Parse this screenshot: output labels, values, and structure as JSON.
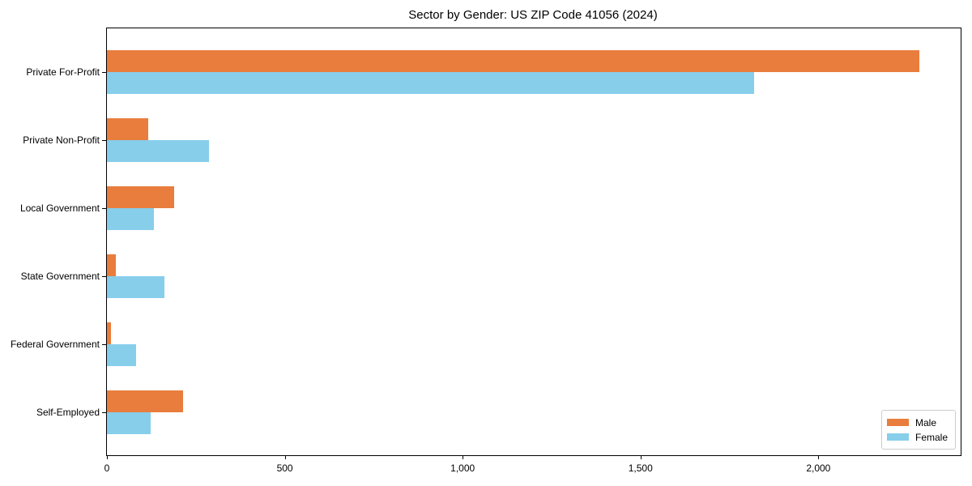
{
  "chart_data": {
    "type": "bar",
    "orientation": "horizontal",
    "title": "Sector by Gender: US ZIP Code 41056 (2024)",
    "categories": [
      "Private For-Profit",
      "Private Non-Profit",
      "Local Government",
      "State Government",
      "Federal Government",
      "Self-Employed"
    ],
    "series": [
      {
        "name": "Male",
        "color": "#e97d3d",
        "values": [
          2283,
          115,
          190,
          26,
          11,
          214
        ]
      },
      {
        "name": "Female",
        "color": "#87ceeb",
        "values": [
          1820,
          286,
          132,
          162,
          83,
          123
        ]
      }
    ],
    "xlabel": "",
    "ylabel": "",
    "xlim": [
      0,
      2400
    ],
    "xticks": [
      0,
      500,
      1000,
      1500,
      2000
    ],
    "xtick_labels": [
      "0",
      "500",
      "1,000",
      "1,500",
      "2,000"
    ],
    "grid": false,
    "legend_position": "lower right",
    "legend_labels": [
      "Male",
      "Female"
    ]
  }
}
